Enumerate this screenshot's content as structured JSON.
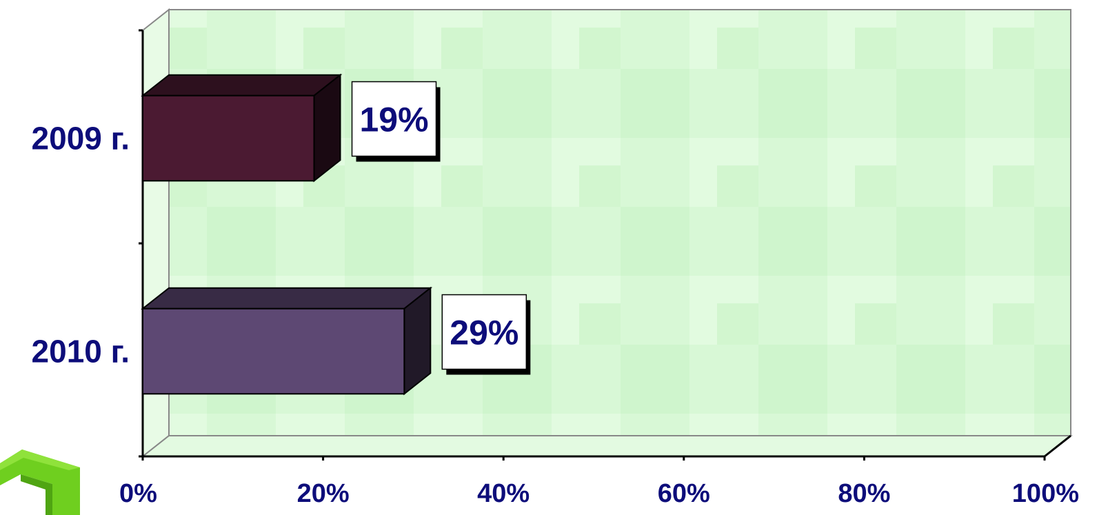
{
  "chart_data": {
    "type": "bar",
    "orientation": "horizontal",
    "style": "3d",
    "categories": [
      "2009 г.",
      "2010 г."
    ],
    "values": [
      19,
      29
    ],
    "data_labels": [
      "19%",
      "29%"
    ],
    "bar_colors": [
      "#4b1a32",
      "#5d4873"
    ],
    "xlim": [
      0,
      100
    ],
    "xticks": [
      "0%",
      "20%",
      "40%",
      "60%",
      "80%",
      "100%"
    ],
    "title": "",
    "xlabel": "",
    "ylabel": "",
    "grid": false,
    "legend": "none",
    "colors": {
      "text": "#0d0d7a",
      "plot_background": "#dcf9dc",
      "axis": "#000000",
      "wall_edge": "#888888"
    }
  }
}
